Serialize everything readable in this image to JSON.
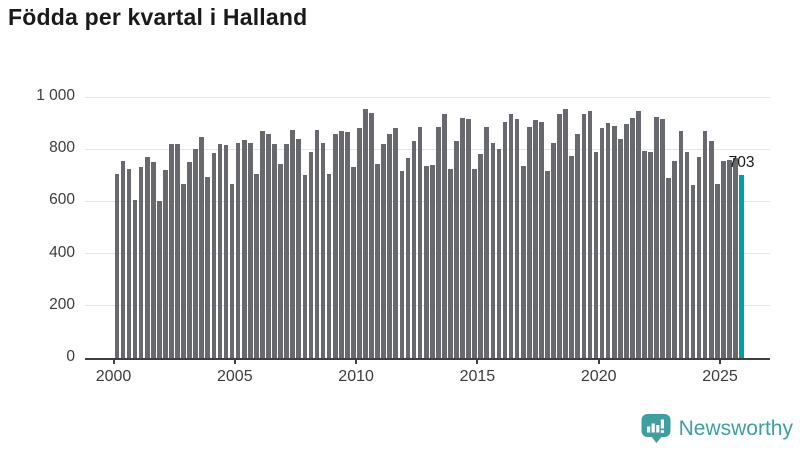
{
  "header": {
    "title": "Födda per kvartal i Halland"
  },
  "chart_data": {
    "type": "bar",
    "title": "Födda per kvartal i Halland",
    "x_start": "2000-Q1",
    "x_end": "2025-Q4",
    "x_ticks": [
      2000,
      2005,
      2010,
      2015,
      2020,
      2025
    ],
    "x_tick_labels": [
      "2000",
      "2005",
      "2010",
      "2015",
      "2020",
      "2025"
    ],
    "y_ticks": [
      0,
      200,
      400,
      600,
      800,
      1000
    ],
    "y_tick_labels": [
      "0",
      "200",
      "400",
      "600",
      "800",
      "1 000"
    ],
    "ylim": [
      0,
      1000
    ],
    "grid": "horizontal",
    "bar_color": "#68686f",
    "highlight_color": "#00a0a0",
    "highlight_index": 103,
    "annotation": {
      "text": "703"
    },
    "values": [
      705,
      755,
      725,
      605,
      730,
      770,
      750,
      600,
      720,
      820,
      820,
      665,
      750,
      800,
      845,
      695,
      785,
      820,
      815,
      665,
      825,
      835,
      825,
      705,
      870,
      860,
      820,
      745,
      820,
      875,
      840,
      700,
      790,
      875,
      825,
      705,
      860,
      870,
      865,
      730,
      880,
      955,
      940,
      745,
      820,
      860,
      880,
      715,
      765,
      830,
      885,
      735,
      740,
      885,
      935,
      725,
      830,
      920,
      915,
      725,
      780,
      885,
      825,
      800,
      905,
      935,
      915,
      735,
      885,
      910,
      905,
      715,
      825,
      935,
      955,
      775,
      860,
      935,
      945,
      790,
      880,
      900,
      890,
      840,
      895,
      920,
      945,
      795,
      790,
      925,
      915,
      690,
      755,
      870,
      790,
      663,
      770,
      870,
      830,
      667,
      755,
      760,
      768,
      703
    ]
  },
  "branding": {
    "name": "Newsworthy",
    "logo_color": "#3f9fa0"
  }
}
